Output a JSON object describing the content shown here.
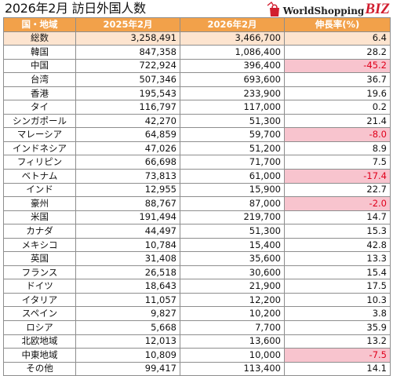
{
  "title": "2026年2月 訪日外国人数",
  "logo": {
    "main": "WorldShopping",
    "accent": "BIZ",
    "accent_color": "#d11e2f",
    "icon": "shopping-bag-icon"
  },
  "colors": {
    "header_bg": "#f2a14a",
    "total_bg": "#fde4cf",
    "negative_bg": "#f8c4ce",
    "negative_text": "#e0001b"
  },
  "table": {
    "headers": [
      "国・地域",
      "2025年2月",
      "2026年2月",
      "伸長率(%)"
    ],
    "rows": [
      [
        "総数",
        "3,258,491",
        "3,466,700",
        "6.4"
      ],
      [
        "韓国",
        "847,358",
        "1,086,400",
        "28.2"
      ],
      [
        "中国",
        "722,924",
        "396,400",
        "-45.2"
      ],
      [
        "台湾",
        "507,346",
        "693,600",
        "36.7"
      ],
      [
        "香港",
        "195,543",
        "233,900",
        "19.6"
      ],
      [
        "タイ",
        "116,797",
        "117,000",
        "0.2"
      ],
      [
        "シンガポール",
        "42,270",
        "51,300",
        "21.4"
      ],
      [
        "マレーシア",
        "64,859",
        "59,700",
        "-8.0"
      ],
      [
        "インドネシア",
        "47,026",
        "51,200",
        "8.9"
      ],
      [
        "フィリピン",
        "66,698",
        "71,700",
        "7.5"
      ],
      [
        "ベトナム",
        "73,813",
        "61,000",
        "-17.4"
      ],
      [
        "インド",
        "12,955",
        "15,900",
        "22.7"
      ],
      [
        "豪州",
        "88,767",
        "87,000",
        "-2.0"
      ],
      [
        "米国",
        "191,494",
        "219,700",
        "14.7"
      ],
      [
        "カナダ",
        "44,497",
        "51,300",
        "15.3"
      ],
      [
        "メキシコ",
        "10,784",
        "15,400",
        "42.8"
      ],
      [
        "英国",
        "31,408",
        "35,600",
        "13.3"
      ],
      [
        "フランス",
        "26,518",
        "30,600",
        "15.4"
      ],
      [
        "ドイツ",
        "18,643",
        "21,900",
        "17.5"
      ],
      [
        "イタリア",
        "11,057",
        "12,200",
        "10.3"
      ],
      [
        "スペイン",
        "9,827",
        "10,200",
        "3.8"
      ],
      [
        "ロシア",
        "5,668",
        "7,700",
        "35.9"
      ],
      [
        "北欧地域",
        "12,013",
        "13,600",
        "13.2"
      ],
      [
        "中東地域",
        "10,809",
        "10,000",
        "-7.5"
      ],
      [
        "その他",
        "99,417",
        "113,400",
        "14.1"
      ]
    ]
  }
}
